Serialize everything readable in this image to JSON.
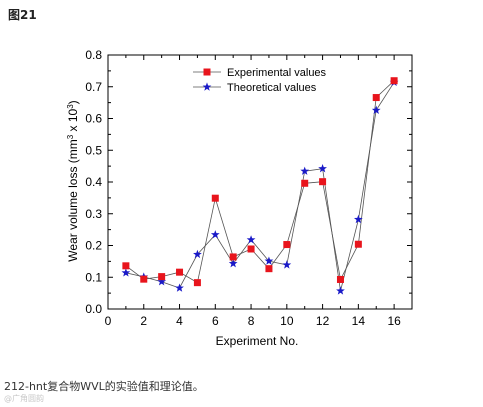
{
  "figure_label": "图21",
  "caption": "212-hnt复合物WVL的实验值和理论值。",
  "watermark": "@广角圆韵",
  "colors": {
    "experimental": "#e8141c",
    "theoretical": "#1a1ac8",
    "axis": "#000000"
  },
  "chart_data": {
    "type": "scatter",
    "xlabel": "Experiment No.",
    "ylabel_main": "Wear volume loss (mm",
    "ylabel_sup": "3",
    "ylabel_mid": " x 10",
    "ylabel_sup2": "3",
    "ylabel_end": ")",
    "xlim": [
      0,
      17
    ],
    "ylim": [
      0,
      0.8
    ],
    "xticks": [
      "0",
      "2",
      "4",
      "6",
      "8",
      "10",
      "12",
      "14",
      "16"
    ],
    "yticks": [
      "0.0",
      "0.1",
      "0.2",
      "0.3",
      "0.4",
      "0.5",
      "0.6",
      "0.7",
      "0.8"
    ],
    "x": [
      1,
      2,
      3,
      4,
      5,
      6,
      7,
      8,
      9,
      10,
      11,
      12,
      13,
      14,
      15,
      16
    ],
    "legend_position": "top-left",
    "series": [
      {
        "name": "Experimental values",
        "marker": "square",
        "values": [
          0.136,
          0.094,
          0.102,
          0.116,
          0.083,
          0.349,
          0.164,
          0.189,
          0.127,
          0.203,
          0.396,
          0.401,
          0.093,
          0.204,
          0.666,
          0.719
        ]
      },
      {
        "name": "Theoretical values",
        "marker": "star",
        "values": [
          0.114,
          0.101,
          0.086,
          0.066,
          0.172,
          0.234,
          0.143,
          0.218,
          0.151,
          0.139,
          0.434,
          0.442,
          0.057,
          0.282,
          0.626,
          0.714
        ]
      }
    ]
  }
}
